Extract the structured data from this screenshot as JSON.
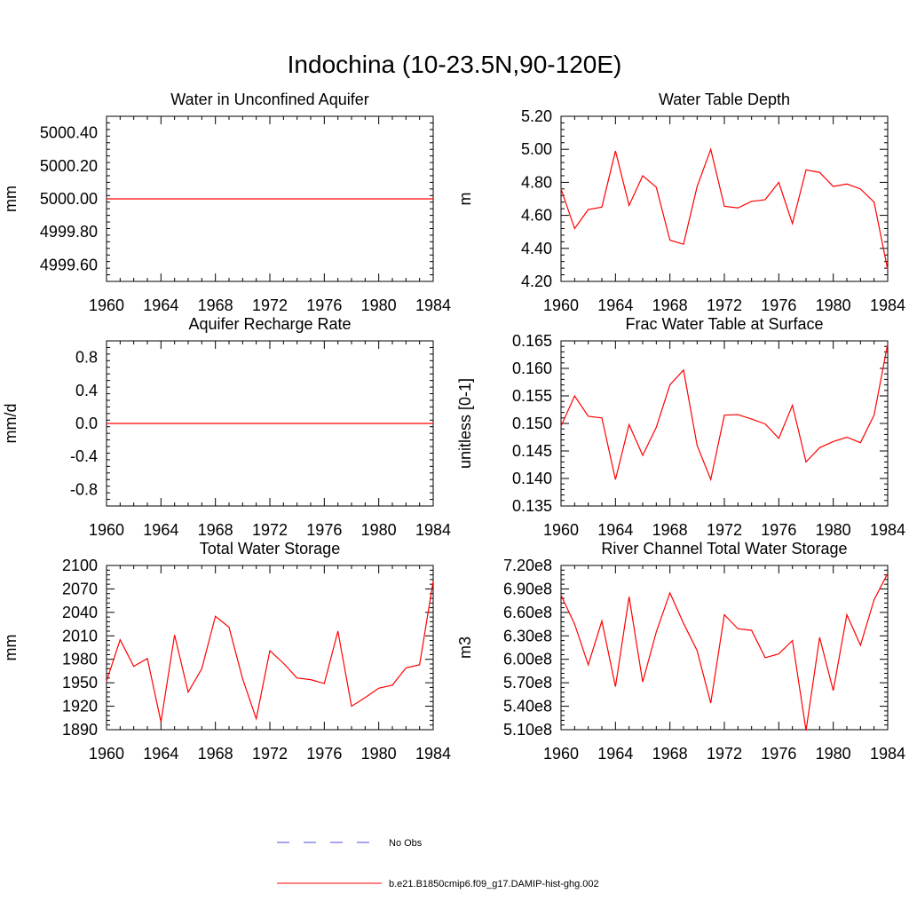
{
  "figure": {
    "title": "Indochina (10-23.5N,90-120E)"
  },
  "legend": {
    "placement": "bottom-center",
    "entries": [
      {
        "label": "No Obs",
        "color": "#4d4dd9",
        "style": "dashed"
      },
      {
        "label": "b.e21.B1850cmip6.f09_g17.DAMIP-hist-ghg.002",
        "color": "#ff0000",
        "style": "solid"
      }
    ]
  },
  "chart_data": [
    {
      "type": "line",
      "title": "Water in Unconfined Aquifer",
      "ylabel": "mm",
      "xlim": [
        1960,
        1984
      ],
      "ylim": [
        4999.5,
        5000.5
      ],
      "xticks": [
        1960,
        1964,
        1968,
        1972,
        1976,
        1980,
        1984
      ],
      "yticks": [
        "5000.40",
        "5000.20",
        "5000.00",
        "4999.80",
        "4999.60"
      ],
      "yticks_values": [
        5000.4,
        5000.2,
        5000.0,
        4999.8,
        4999.6
      ],
      "x": [
        1960,
        1984
      ],
      "series": [
        {
          "values": [
            5000.0,
            5000.0
          ],
          "color": "#ff0000"
        }
      ]
    },
    {
      "type": "line",
      "title": "Water Table Depth",
      "ylabel": "m",
      "xlim": [
        1960,
        1984
      ],
      "ylim": [
        4.2,
        5.2
      ],
      "xticks": [
        1960,
        1964,
        1968,
        1972,
        1976,
        1980,
        1984
      ],
      "yticks": [
        "5.20",
        "5.00",
        "4.80",
        "4.60",
        "4.40",
        "4.20"
      ],
      "yticks_values": [
        5.2,
        5.0,
        4.8,
        4.6,
        4.4,
        4.2
      ],
      "x": [
        1960,
        1961,
        1962,
        1963,
        1964,
        1965,
        1966,
        1967,
        1968,
        1969,
        1970,
        1971,
        1972,
        1973,
        1974,
        1975,
        1976,
        1977,
        1978,
        1979,
        1980,
        1981,
        1982,
        1983,
        1984
      ],
      "series": [
        {
          "values": [
            4.76,
            4.52,
            4.635,
            4.65,
            4.99,
            4.66,
            4.84,
            4.77,
            4.45,
            4.425,
            4.775,
            5.0,
            4.655,
            4.645,
            4.685,
            4.695,
            4.8,
            4.55,
            4.875,
            4.86,
            4.775,
            4.79,
            4.76,
            4.68,
            4.27
          ],
          "color": "#ff0000"
        }
      ]
    },
    {
      "type": "line",
      "title": "Aquifer Recharge Rate",
      "ylabel": "mm/d",
      "xlim": [
        1960,
        1984
      ],
      "ylim": [
        -1.0,
        1.0
      ],
      "xticks": [
        1960,
        1964,
        1968,
        1972,
        1976,
        1980,
        1984
      ],
      "yticks": [
        "0.8",
        "0.4",
        "0.0",
        "-0.4",
        "-0.8"
      ],
      "yticks_values": [
        0.8,
        0.4,
        0.0,
        -0.4,
        -0.8
      ],
      "x": [
        1960,
        1984
      ],
      "series": [
        {
          "values": [
            0.0,
            0.0
          ],
          "color": "#ff0000"
        }
      ]
    },
    {
      "type": "line",
      "title": "Frac Water Table at Surface",
      "ylabel": "unitless [0-1]",
      "xlim": [
        1960,
        1984
      ],
      "ylim": [
        0.135,
        0.165
      ],
      "xticks": [
        1960,
        1964,
        1968,
        1972,
        1976,
        1980,
        1984
      ],
      "yticks": [
        "0.165",
        "0.160",
        "0.155",
        "0.150",
        "0.145",
        "0.140",
        "0.135"
      ],
      "yticks_values": [
        0.165,
        0.16,
        0.155,
        0.15,
        0.145,
        0.14,
        0.135
      ],
      "x": [
        1960,
        1961,
        1962,
        1963,
        1964,
        1965,
        1966,
        1967,
        1968,
        1969,
        1970,
        1971,
        1972,
        1973,
        1974,
        1975,
        1976,
        1977,
        1978,
        1979,
        1980,
        1981,
        1982,
        1983,
        1984
      ],
      "series": [
        {
          "values": [
            0.1495,
            0.155,
            0.1513,
            0.151,
            0.1398,
            0.1498,
            0.1442,
            0.1493,
            0.157,
            0.1597,
            0.146,
            0.1398,
            0.1515,
            0.1516,
            0.1508,
            0.1499,
            0.1473,
            0.1533,
            0.143,
            0.1456,
            0.1467,
            0.1475,
            0.1465,
            0.1515,
            0.1645
          ],
          "color": "#ff0000"
        }
      ]
    },
    {
      "type": "line",
      "title": "Total Water Storage",
      "ylabel": "mm",
      "xlim": [
        1960,
        1984
      ],
      "ylim": [
        1890,
        2100
      ],
      "xticks": [
        1960,
        1964,
        1968,
        1972,
        1976,
        1980,
        1984
      ],
      "yticks": [
        "2100",
        "2070",
        "2040",
        "2010",
        "1980",
        "1950",
        "1920",
        "1890"
      ],
      "yticks_values": [
        2100,
        2070,
        2040,
        2010,
        1980,
        1950,
        1920,
        1890
      ],
      "x": [
        1960,
        1961,
        1962,
        1963,
        1964,
        1965,
        1966,
        1967,
        1968,
        1969,
        1970,
        1971,
        1972,
        1973,
        1974,
        1975,
        1976,
        1977,
        1978,
        1979,
        1980,
        1981,
        1982,
        1983,
        1984
      ],
      "series": [
        {
          "values": [
            1952,
            2005,
            1971,
            1981,
            1900,
            2011,
            1938,
            1968,
            2035,
            2021,
            1955,
            1904,
            1991,
            1975,
            1956,
            1954,
            1949,
            2016,
            1920,
            1931,
            1943,
            1947,
            1969,
            1973,
            2080
          ],
          "color": "#ff0000"
        }
      ]
    },
    {
      "type": "line",
      "title": "River Channel Total Water Storage",
      "ylabel": "m3",
      "xlim": [
        1960,
        1984
      ],
      "ylim": [
        510000000.0,
        720000000.0
      ],
      "xticks": [
        1960,
        1964,
        1968,
        1972,
        1976,
        1980,
        1984
      ],
      "yticks": [
        "7.20e8",
        "6.90e8",
        "6.60e8",
        "6.30e8",
        "6.00e8",
        "5.70e8",
        "5.40e8",
        "5.10e8"
      ],
      "yticks_values": [
        720000000.0,
        690000000.0,
        660000000.0,
        630000000.0,
        600000000.0,
        570000000.0,
        540000000.0,
        510000000.0
      ],
      "x": [
        1960,
        1961,
        1962,
        1963,
        1964,
        1965,
        1966,
        1967,
        1968,
        1969,
        1970,
        1971,
        1972,
        1973,
        1974,
        1975,
        1976,
        1977,
        1978,
        1979,
        1980,
        1981,
        1982,
        1983,
        1984
      ],
      "series": [
        {
          "values": [
            682000000.0,
            645000000.0,
            593000000.0,
            649000000.0,
            565000000.0,
            680000000.0,
            571000000.0,
            635000000.0,
            685000000.0,
            646000000.0,
            611000000.0,
            544000000.0,
            657000000.0,
            639000000.0,
            637000000.0,
            602000000.0,
            607000000.0,
            624000000.0,
            509000000.0,
            628000000.0,
            560000000.0,
            657000000.0,
            618000000.0,
            676000000.0,
            710000000.0
          ],
          "color": "#ff0000"
        }
      ]
    }
  ]
}
